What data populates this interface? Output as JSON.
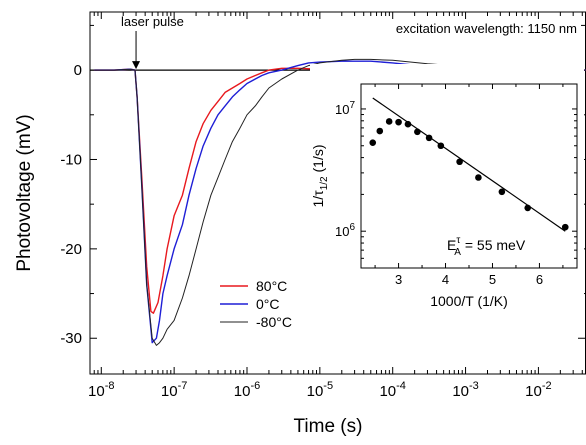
{
  "chart_data": [
    {
      "type": "line",
      "title": "",
      "xlabel": "Time (s)",
      "ylabel": "Photovoltage (mV)",
      "xscale": "log",
      "xlim": [
        7e-09,
        0.045
      ],
      "ylim": [
        -34,
        6.5
      ],
      "x_ticks": [
        1e-08,
        1e-07,
        1e-06,
        1e-05,
        0.0001,
        0.001,
        0.01
      ],
      "x_tick_labels": [
        {
          "base": "10",
          "exp": "-8"
        },
        {
          "base": "10",
          "exp": "-7"
        },
        {
          "base": "10",
          "exp": "-6"
        },
        {
          "base": "10",
          "exp": "-5"
        },
        {
          "base": "10",
          "exp": "-4"
        },
        {
          "base": "10",
          "exp": "-3"
        },
        {
          "base": "10",
          "exp": "-2"
        }
      ],
      "y_ticks": [
        0,
        -10,
        -20,
        -30
      ],
      "y_tick_labels": [
        "0",
        "-10",
        "-20",
        "-30"
      ],
      "grid": false,
      "legend_position": "bottom-center",
      "zero_line": true,
      "annotations": {
        "pulse_label": "laser pulse",
        "pulse_time": 3e-08,
        "excitation_note": "excitation wavelength: 1150 nm"
      },
      "series": [
        {
          "name": "80°C",
          "color": "#e8191e",
          "x": [
            8e-09,
            1.5e-08,
            2.5e-08,
            2.9e-08,
            3.1e-08,
            3.6e-08,
            4.2e-08,
            4.8e-08,
            5.2e-08,
            6e-08,
            7e-08,
            8e-08,
            1e-07,
            1.3e-07,
            1.6e-07,
            2e-07,
            2.5e-07,
            3.2e-07,
            4e-07,
            5e-07,
            6.3e-07,
            8e-07,
            1e-06,
            1.3e-06,
            1.6e-06,
            2e-06,
            3e-06,
            5e-06,
            1e-05,
            2e-05,
            4e-05,
            0.0001,
            0.001,
            0.01,
            0.045
          ],
          "y": [
            0,
            0,
            0.1,
            0,
            -3,
            -12,
            -22,
            -27,
            -27.2,
            -26,
            -23,
            -20,
            -16.3,
            -14,
            -11,
            -8,
            -6,
            -4.5,
            -3.5,
            -2.5,
            -2,
            -1.5,
            -1,
            -0.6,
            -0.3,
            0,
            0.2,
            0.2,
            0.1,
            0,
            0,
            0,
            0,
            0,
            0
          ]
        },
        {
          "name": "0°C",
          "color": "#1f1fd6",
          "x": [
            8e-09,
            1.5e-08,
            2.5e-08,
            2.9e-08,
            3.1e-08,
            3.6e-08,
            4.2e-08,
            5e-08,
            5.7e-08,
            6.3e-08,
            7e-08,
            8e-08,
            1e-07,
            1.3e-07,
            1.6e-07,
            2e-07,
            2.5e-07,
            3.2e-07,
            4e-07,
            5e-07,
            6.3e-07,
            8e-07,
            1e-06,
            1.3e-06,
            1.6e-06,
            2e-06,
            3e-06,
            5e-06,
            7e-06,
            1e-05,
            2e-05,
            3e-05,
            5e-05,
            0.0001,
            0.0003,
            0.001,
            0.003,
            0.01,
            0.045
          ],
          "y": [
            0,
            0,
            0.1,
            0,
            -3,
            -13,
            -24,
            -30.5,
            -30,
            -28,
            -25,
            -23,
            -20,
            -17.3,
            -14,
            -11,
            -8.5,
            -6.5,
            -5,
            -4,
            -3,
            -2.2,
            -1.5,
            -1,
            -0.6,
            -0.3,
            0,
            0.5,
            0.8,
            0.9,
            1,
            1,
            1,
            0.8,
            0.4,
            0.2,
            0.1,
            0,
            0
          ]
        },
        {
          "name": "-80°C",
          "color": "#222222",
          "x": [
            8e-09,
            1.5e-08,
            2.5e-08,
            2.9e-08,
            3.1e-08,
            3.6e-08,
            4.2e-08,
            5e-08,
            5.7e-08,
            6.3e-08,
            7e-08,
            8e-08,
            1e-07,
            1.3e-07,
            1.6e-07,
            2e-07,
            2.5e-07,
            3.2e-07,
            4e-07,
            5e-07,
            6.3e-07,
            8e-07,
            1e-06,
            1.3e-06,
            1.6e-06,
            2e-06,
            3e-06,
            5e-06,
            7e-06,
            1e-05,
            2e-05,
            3e-05,
            5e-05,
            0.0001,
            0.0003,
            0.001,
            0.003,
            0.01,
            0.045
          ],
          "y": [
            0,
            0,
            0.1,
            0,
            -3,
            -13,
            -24,
            -30,
            -30.8,
            -30.5,
            -30,
            -29,
            -28,
            -25.5,
            -23,
            -20,
            -17,
            -14,
            -12,
            -10,
            -8,
            -6.5,
            -5,
            -4,
            -3,
            -2,
            -1,
            0,
            0.5,
            0.8,
            1.1,
            1.2,
            1.2,
            1.1,
            0.7,
            0.4,
            0.2,
            0.1,
            0
          ]
        }
      ]
    },
    {
      "type": "scatter",
      "title": "",
      "xlabel": "1000/T (1/K)",
      "ylabel": "1/τ1/2 (1/s)",
      "ylabel_parts": {
        "base": "1/τ",
        "sub": "1/2",
        "rest": " (1/s)"
      },
      "yscale": "log",
      "xlim": [
        2.2,
        6.8
      ],
      "ylim": [
        500000.0,
        16000000.0
      ],
      "x_ticks": [
        3,
        4,
        5,
        6
      ],
      "x_tick_labels": [
        "3",
        "4",
        "5",
        "6"
      ],
      "y_ticks": [
        1000000.0,
        10000000.0
      ],
      "y_tick_labels": [
        {
          "base": "10",
          "exp": "6"
        },
        {
          "base": "10",
          "exp": "7"
        }
      ],
      "grid": false,
      "annotation": {
        "text_prefix": "E",
        "text_sup": "τ",
        "text_sub": "A",
        "text_rest": " = 55 meV"
      },
      "points": {
        "x": [
          2.45,
          2.6,
          2.8,
          3.0,
          3.2,
          3.4,
          3.65,
          3.9,
          4.3,
          4.7,
          5.2,
          5.75,
          6.55
        ],
        "y": [
          5300000.0,
          6600000.0,
          7900000.0,
          7800000.0,
          7500000.0,
          6500000.0,
          5800000.0,
          5000000.0,
          3700000.0,
          2750000.0,
          2100000.0,
          1550000.0,
          1080000.0
        ]
      },
      "fit_line": {
        "x": [
          2.45,
          6.55
        ],
        "y": [
          12300000.0,
          1000000.0
        ]
      }
    }
  ]
}
